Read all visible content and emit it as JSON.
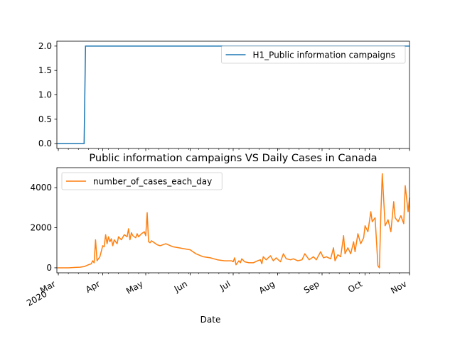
{
  "chart_data": [
    {
      "type": "line",
      "title": "",
      "xlabel": "",
      "ylabel": "",
      "ylim": [
        -0.1,
        2.1
      ],
      "yticks": [
        0.0,
        0.5,
        1.0,
        1.5,
        2.0
      ],
      "ytick_labels": [
        "0.0",
        "0.5",
        "1.0",
        "1.5",
        "2.0"
      ],
      "legend_position": "top-right",
      "series": [
        {
          "name": "H1_Public information campaigns",
          "color": "#1f77b4",
          "x": [
            "2020-02-29",
            "2020-03-19",
            "2020-03-20",
            "2020-11-01"
          ],
          "values": [
            0,
            0,
            2,
            2
          ]
        }
      ]
    },
    {
      "type": "line",
      "title": "Public information campaigns VS Daily Cases in Canada",
      "xlabel": "Date",
      "ylabel": "",
      "ylim": [
        -250,
        5000
      ],
      "yticks": [
        0,
        2000,
        4000
      ],
      "ytick_labels": [
        "0",
        "2000",
        "4000"
      ],
      "xlim": [
        "2020-02-29",
        "2020-11-01"
      ],
      "x_major_ticks": [
        "2020-03-01",
        "2020-04-01",
        "2020-05-01",
        "2020-06-01",
        "2020-07-01",
        "2020-08-01",
        "2020-09-01",
        "2020-10-01",
        "2020-11-01"
      ],
      "x_major_labels": [
        "Mar\n2020",
        "Apr",
        "May",
        "Jun",
        "Jul",
        "Aug",
        "Sep",
        "Oct",
        "Nov"
      ],
      "legend_position": "top-left",
      "series": [
        {
          "name": "number_of_cases_each_day",
          "color": "#ff7f0e",
          "x": [
            "2020-02-29",
            "2020-03-08",
            "2020-03-13",
            "2020-03-16",
            "2020-03-19",
            "2020-03-22",
            "2020-03-24",
            "2020-03-25",
            "2020-03-26",
            "2020-03-27",
            "2020-03-28",
            "2020-03-30",
            "2020-04-01",
            "2020-04-02",
            "2020-04-03",
            "2020-04-04",
            "2020-04-05",
            "2020-04-06",
            "2020-04-07",
            "2020-04-08",
            "2020-04-09",
            "2020-04-10",
            "2020-04-11",
            "2020-04-12",
            "2020-04-14",
            "2020-04-16",
            "2020-04-18",
            "2020-04-19",
            "2020-04-20",
            "2020-04-21",
            "2020-04-22",
            "2020-04-24",
            "2020-04-25",
            "2020-04-26",
            "2020-04-28",
            "2020-04-30",
            "2020-05-01",
            "2020-05-02",
            "2020-05-03",
            "2020-05-04",
            "2020-05-05",
            "2020-05-07",
            "2020-05-09",
            "2020-05-11",
            "2020-05-15",
            "2020-05-20",
            "2020-05-24",
            "2020-05-28",
            "2020-06-01",
            "2020-06-05",
            "2020-06-10",
            "2020-06-15",
            "2020-06-20",
            "2020-06-25",
            "2020-06-30",
            "2020-07-01",
            "2020-07-02",
            "2020-07-03",
            "2020-07-05",
            "2020-07-06",
            "2020-07-07",
            "2020-07-09",
            "2020-07-12",
            "2020-07-15",
            "2020-07-18",
            "2020-07-20",
            "2020-07-21",
            "2020-07-22",
            "2020-07-24",
            "2020-07-27",
            "2020-07-29",
            "2020-07-31",
            "2020-08-03",
            "2020-08-05",
            "2020-08-07",
            "2020-08-10",
            "2020-08-12",
            "2020-08-15",
            "2020-08-18",
            "2020-08-20",
            "2020-08-23",
            "2020-08-26",
            "2020-08-28",
            "2020-08-31",
            "2020-09-02",
            "2020-09-04",
            "2020-09-07",
            "2020-09-09",
            "2020-09-10",
            "2020-09-12",
            "2020-09-14",
            "2020-09-16",
            "2020-09-17",
            "2020-09-19",
            "2020-09-21",
            "2020-09-23",
            "2020-09-24",
            "2020-09-26",
            "2020-09-28",
            "2020-09-30",
            "2020-10-01",
            "2020-10-03",
            "2020-10-05",
            "2020-10-06",
            "2020-10-08",
            "2020-10-10",
            "2020-10-11",
            "2020-10-12",
            "2020-10-13",
            "2020-10-14",
            "2020-10-15",
            "2020-10-17",
            "2020-10-19",
            "2020-10-21",
            "2020-10-22",
            "2020-10-24",
            "2020-10-26",
            "2020-10-28",
            "2020-10-29",
            "2020-10-31",
            "2020-11-01"
          ],
          "values": [
            0,
            0,
            20,
            30,
            60,
            150,
            200,
            350,
            250,
            1400,
            350,
            550,
            1100,
            1050,
            1650,
            1200,
            1550,
            1300,
            1450,
            1100,
            1400,
            1300,
            1200,
            1550,
            1400,
            1650,
            1550,
            1950,
            1400,
            1750,
            1600,
            1500,
            1700,
            1550,
            1700,
            1800,
            1600,
            2750,
            1300,
            1250,
            1350,
            1250,
            1150,
            1100,
            1200,
            1050,
            1000,
            950,
            900,
            700,
            550,
            500,
            400,
            350,
            350,
            300,
            500,
            150,
            350,
            250,
            450,
            300,
            250,
            250,
            350,
            400,
            200,
            550,
            400,
            600,
            350,
            500,
            300,
            700,
            450,
            400,
            450,
            350,
            400,
            700,
            400,
            550,
            400,
            800,
            500,
            550,
            450,
            1000,
            350,
            650,
            550,
            1600,
            700,
            1000,
            700,
            1300,
            800,
            1700,
            1200,
            1500,
            2100,
            1800,
            2800,
            2300,
            2500,
            100,
            0,
            2700,
            4700,
            3400,
            2100,
            2400,
            1800,
            3300,
            2500,
            2300,
            2600,
            2200,
            4100,
            2800,
            3500
          ]
        }
      ]
    }
  ]
}
